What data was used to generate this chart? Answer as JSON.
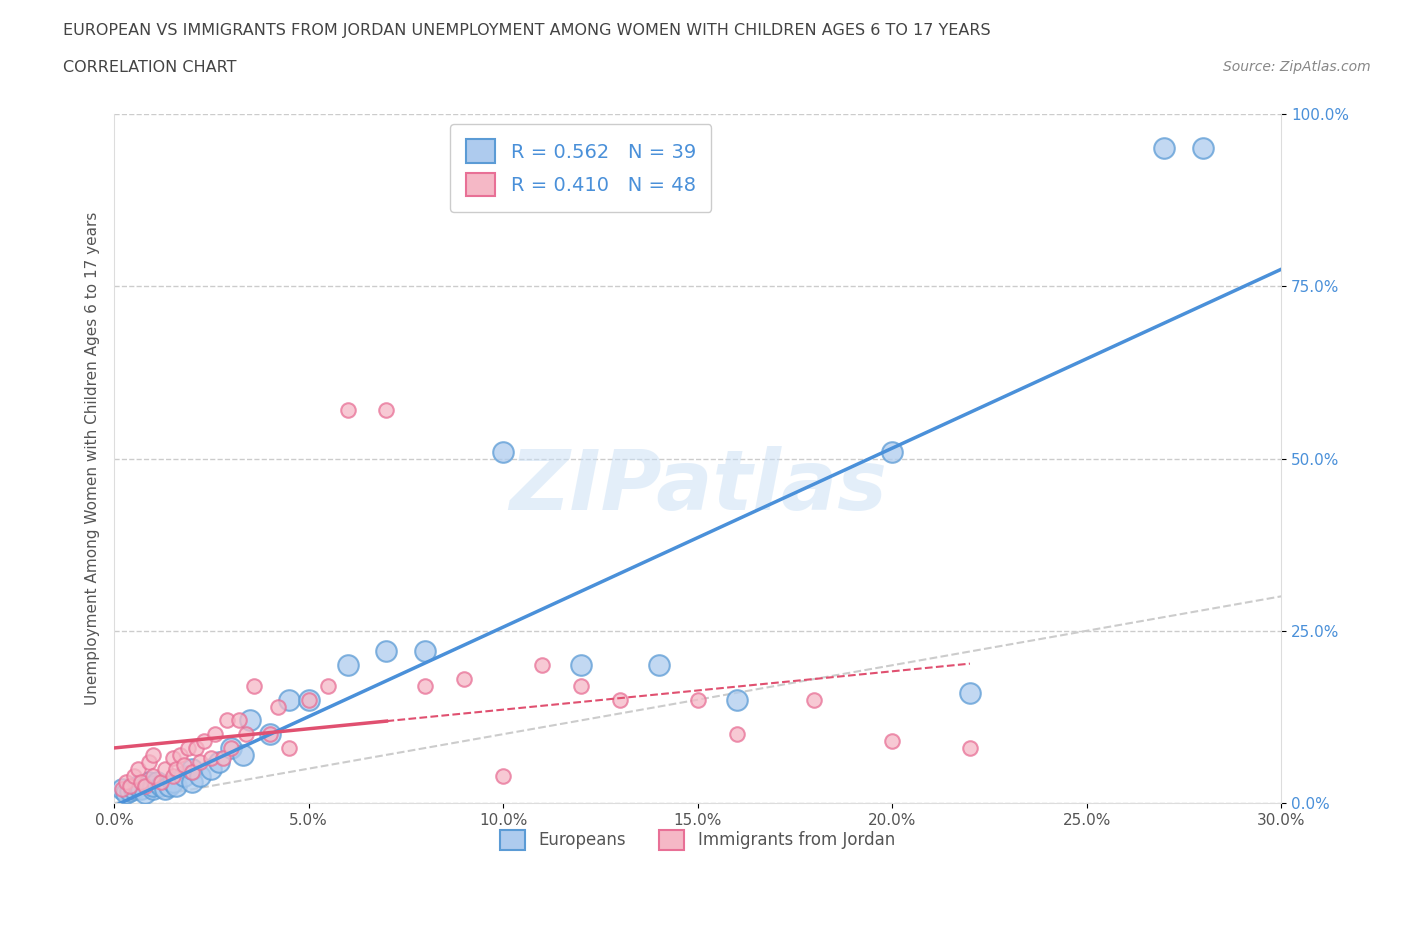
{
  "title_line1": "EUROPEAN VS IMMIGRANTS FROM JORDAN UNEMPLOYMENT AMONG WOMEN WITH CHILDREN AGES 6 TO 17 YEARS",
  "title_line2": "CORRELATION CHART",
  "source": "Source: ZipAtlas.com",
  "ylabel": "Unemployment Among Women with Children Ages 6 to 17 years",
  "xlim": [
    0.0,
    0.3
  ],
  "ylim": [
    0.0,
    1.0
  ],
  "xticks": [
    0.0,
    0.05,
    0.1,
    0.15,
    0.2,
    0.25,
    0.3
  ],
  "xtick_labels": [
    "0.0%",
    "5.0%",
    "10.0%",
    "15.0%",
    "20.0%",
    "25.0%",
    "30.0%"
  ],
  "yticks": [
    0.0,
    0.25,
    0.5,
    0.75,
    1.0
  ],
  "ytick_labels": [
    "0.0%",
    "25.0%",
    "50.0%",
    "75.0%",
    "100.0%"
  ],
  "european_R": 0.562,
  "european_N": 39,
  "jordan_R": 0.41,
  "jordan_N": 48,
  "european_color": "#aecbee",
  "jordan_color": "#f5b8c6",
  "european_edge_color": "#5b9bd5",
  "jordan_edge_color": "#e87096",
  "european_line_color": "#4a90d9",
  "jordan_line_color": "#e05070",
  "ref_line_color": "#cccccc",
  "background_color": "#ffffff",
  "grid_color": "#cccccc",
  "watermark": "ZIPatlas",
  "ytick_color": "#4a90d9",
  "xtick_color": "#555555",
  "europeans_x": [
    0.002,
    0.003,
    0.004,
    0.005,
    0.006,
    0.007,
    0.008,
    0.009,
    0.01,
    0.01,
    0.011,
    0.012,
    0.013,
    0.014,
    0.015,
    0.016,
    0.018,
    0.02,
    0.02,
    0.022,
    0.025,
    0.027,
    0.03,
    0.033,
    0.035,
    0.04,
    0.045,
    0.05,
    0.06,
    0.07,
    0.08,
    0.1,
    0.12,
    0.14,
    0.16,
    0.2,
    0.22,
    0.27,
    0.28
  ],
  "europeans_y": [
    0.02,
    0.015,
    0.018,
    0.02,
    0.025,
    0.02,
    0.015,
    0.03,
    0.02,
    0.025,
    0.03,
    0.025,
    0.02,
    0.025,
    0.03,
    0.025,
    0.04,
    0.03,
    0.05,
    0.04,
    0.05,
    0.06,
    0.08,
    0.07,
    0.12,
    0.1,
    0.15,
    0.15,
    0.2,
    0.22,
    0.22,
    0.51,
    0.2,
    0.2,
    0.15,
    0.51,
    0.16,
    0.95,
    0.95
  ],
  "jordan_x": [
    0.002,
    0.003,
    0.004,
    0.005,
    0.006,
    0.007,
    0.008,
    0.009,
    0.01,
    0.01,
    0.012,
    0.013,
    0.015,
    0.015,
    0.016,
    0.017,
    0.018,
    0.019,
    0.02,
    0.021,
    0.022,
    0.023,
    0.025,
    0.026,
    0.028,
    0.029,
    0.03,
    0.032,
    0.034,
    0.036,
    0.04,
    0.042,
    0.045,
    0.05,
    0.055,
    0.06,
    0.07,
    0.08,
    0.09,
    0.1,
    0.11,
    0.12,
    0.13,
    0.15,
    0.16,
    0.18,
    0.2,
    0.22
  ],
  "jordan_y": [
    0.02,
    0.03,
    0.025,
    0.04,
    0.05,
    0.03,
    0.025,
    0.06,
    0.04,
    0.07,
    0.03,
    0.05,
    0.04,
    0.065,
    0.05,
    0.07,
    0.055,
    0.08,
    0.045,
    0.08,
    0.06,
    0.09,
    0.065,
    0.1,
    0.065,
    0.12,
    0.08,
    0.12,
    0.1,
    0.17,
    0.1,
    0.14,
    0.08,
    0.15,
    0.17,
    0.57,
    0.57,
    0.17,
    0.18,
    0.04,
    0.2,
    0.17,
    0.15,
    0.15,
    0.1,
    0.15,
    0.09,
    0.08
  ],
  "eu_marker_size": 220,
  "jo_marker_size": 110,
  "eu_line_xlim": [
    0.0,
    0.3
  ],
  "jo_line_xlim": [
    0.0,
    0.1
  ]
}
